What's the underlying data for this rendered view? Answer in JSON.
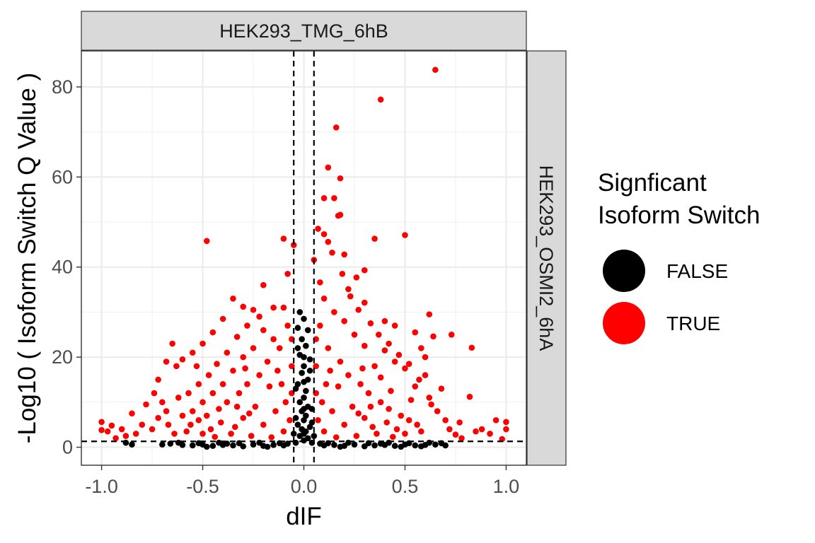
{
  "chart_data": {
    "type": "scatter",
    "title": "",
    "facet_top": "HEK293_TMG_6hB",
    "facet_right": "HEK293_OSMI2_6hA",
    "xlabel": "dIF",
    "ylabel": "-Log10 ( Isoform Switch Q Value )",
    "xlim": [
      -1.1,
      1.1
    ],
    "ylim": [
      -4,
      88
    ],
    "x_ticks": [
      -1.0,
      -0.5,
      0.0,
      0.5,
      1.0
    ],
    "x_tick_labels": [
      "-1.0",
      "-0.5",
      "0.0",
      "0.5",
      "1.0"
    ],
    "y_ticks": [
      0,
      20,
      40,
      60,
      80
    ],
    "y_tick_labels": [
      "0",
      "20",
      "40",
      "60",
      "80"
    ],
    "grid": true,
    "threshold_lines": {
      "vertical": [
        -0.05,
        0.05
      ],
      "horizontal": 1.3
    },
    "legend": {
      "title_line1": "Signficant",
      "title_line2": "Isoform Switch",
      "position": "right",
      "entries": [
        {
          "label": "FALSE",
          "color": "#000000"
        },
        {
          "label": "TRUE",
          "color": "#ff0000"
        }
      ]
    },
    "series": [
      {
        "name": "TRUE",
        "color": "#ff0000",
        "points": [
          [
            0.65,
            83.8
          ],
          [
            0.38,
            77.2
          ],
          [
            0.16,
            71.0
          ],
          [
            0.12,
            62.1
          ],
          [
            0.18,
            59.7
          ],
          [
            0.1,
            55.3
          ],
          [
            0.15,
            55.3
          ],
          [
            0.17,
            51.4
          ],
          [
            0.18,
            51.6
          ],
          [
            0.35,
            46.3
          ],
          [
            0.5,
            47.1
          ],
          [
            -0.48,
            45.8
          ],
          [
            -0.05,
            44.9
          ],
          [
            -0.1,
            46.3
          ],
          [
            0.07,
            48.5
          ],
          [
            0.1,
            47.3
          ],
          [
            0.12,
            45.6
          ],
          [
            0.14,
            43.2
          ],
          [
            0.2,
            42.8
          ],
          [
            0.05,
            41.6
          ],
          [
            0.3,
            39.3
          ],
          [
            0.26,
            37.7
          ],
          [
            -0.08,
            38.5
          ],
          [
            -0.2,
            36.0
          ],
          [
            0.22,
            35.1
          ],
          [
            0.08,
            36.6
          ],
          [
            0.62,
            29.5
          ],
          [
            0.73,
            25.0
          ],
          [
            0.83,
            22.1
          ],
          [
            0.64,
            24.6
          ],
          [
            -0.35,
            33.0
          ],
          [
            -0.3,
            31.2
          ],
          [
            -0.25,
            30.5
          ],
          [
            -0.15,
            31.0
          ],
          [
            0.3,
            32.1
          ],
          [
            0.4,
            28.0
          ],
          [
            0.45,
            27.0
          ],
          [
            0.55,
            25.5
          ],
          [
            0.58,
            22.0
          ],
          [
            0.6,
            20.0
          ],
          [
            -0.4,
            28.5
          ],
          [
            -0.45,
            25.5
          ],
          [
            -0.5,
            23.0
          ],
          [
            -0.55,
            21.0
          ],
          [
            -0.6,
            19.5
          ],
          [
            -0.65,
            23.0
          ],
          [
            -0.68,
            19.0
          ],
          [
            -0.63,
            18.0
          ],
          [
            -0.72,
            15.0
          ],
          [
            -0.7,
            10.0
          ],
          [
            -0.78,
            9.5
          ],
          [
            -0.8,
            5.0
          ],
          [
            -0.85,
            7.5
          ],
          [
            -0.9,
            4.0
          ],
          [
            -0.95,
            4.8
          ],
          [
            -0.97,
            3.5
          ],
          [
            -1.0,
            5.6
          ],
          [
            -1.0,
            3.8
          ],
          [
            -0.93,
            2.0
          ],
          [
            -0.88,
            2.5
          ],
          [
            -0.83,
            3.0
          ],
          [
            -0.75,
            4.0
          ],
          [
            -0.72,
            6.5
          ],
          [
            -0.67,
            5.0
          ],
          [
            -0.62,
            11.0
          ],
          [
            0.62,
            11.0
          ],
          [
            0.66,
            8.0
          ],
          [
            0.7,
            6.0
          ],
          [
            0.72,
            4.0
          ],
          [
            0.75,
            2.8
          ],
          [
            0.77,
            5.5
          ],
          [
            0.82,
            11.2
          ],
          [
            0.85,
            3.5
          ],
          [
            0.88,
            4.0
          ],
          [
            0.92,
            3.0
          ],
          [
            0.95,
            6.0
          ],
          [
            1.0,
            5.6
          ],
          [
            1.0,
            4.0
          ],
          [
            0.98,
            1.8
          ],
          [
            0.78,
            2.0
          ],
          [
            0.68,
            13.0
          ],
          [
            0.6,
            16.0
          ],
          [
            0.55,
            13.5
          ],
          [
            0.5,
            17.5
          ],
          [
            0.45,
            19.0
          ],
          [
            0.4,
            21.5
          ],
          [
            0.35,
            18.0
          ],
          [
            0.3,
            22.5
          ],
          [
            0.25,
            25.0
          ],
          [
            0.2,
            28.0
          ],
          [
            0.15,
            30.0
          ],
          [
            0.1,
            33.0
          ],
          [
            0.08,
            27.0
          ],
          [
            0.06,
            24.0
          ],
          [
            0.12,
            22.0
          ],
          [
            0.18,
            19.0
          ],
          [
            0.22,
            16.0
          ],
          [
            0.28,
            14.0
          ],
          [
            0.32,
            12.0
          ],
          [
            0.38,
            10.0
          ],
          [
            0.42,
            8.5
          ],
          [
            0.48,
            7.0
          ],
          [
            0.52,
            6.0
          ],
          [
            0.56,
            5.0
          ],
          [
            0.58,
            3.5
          ],
          [
            0.46,
            4.0
          ],
          [
            0.36,
            3.0
          ],
          [
            0.26,
            2.5
          ],
          [
            0.16,
            2.2
          ],
          [
            0.1,
            3.5
          ],
          [
            0.07,
            6.0
          ],
          [
            0.09,
            10.0
          ],
          [
            0.11,
            14.0
          ],
          [
            0.13,
            17.0
          ],
          [
            0.14,
            8.0
          ],
          [
            0.2,
            5.0
          ],
          [
            0.24,
            9.0
          ],
          [
            0.3,
            6.5
          ],
          [
            0.34,
            4.5
          ],
          [
            0.44,
            2.3
          ],
          [
            -0.07,
            6.0
          ],
          [
            -0.09,
            10.0
          ],
          [
            -0.11,
            14.0
          ],
          [
            -0.13,
            17.0
          ],
          [
            -0.14,
            8.0
          ],
          [
            -0.2,
            5.0
          ],
          [
            -0.24,
            9.0
          ],
          [
            -0.3,
            6.5
          ],
          [
            -0.34,
            4.5
          ],
          [
            -0.44,
            2.3
          ],
          [
            -0.06,
            24.0
          ],
          [
            -0.08,
            27.0
          ],
          [
            -0.1,
            31.0
          ],
          [
            -0.12,
            22.0
          ],
          [
            -0.18,
            19.0
          ],
          [
            -0.22,
            16.0
          ],
          [
            -0.28,
            14.0
          ],
          [
            -0.32,
            12.0
          ],
          [
            -0.38,
            10.0
          ],
          [
            -0.42,
            8.5
          ],
          [
            -0.48,
            7.0
          ],
          [
            -0.52,
            6.0
          ],
          [
            -0.56,
            5.0
          ],
          [
            -0.58,
            3.5
          ],
          [
            -0.46,
            4.0
          ],
          [
            -0.36,
            3.0
          ],
          [
            -0.26,
            2.5
          ],
          [
            -0.16,
            2.2
          ],
          [
            -0.1,
            3.5
          ],
          [
            -0.2,
            26.0
          ],
          [
            -0.25,
            22.0
          ],
          [
            -0.3,
            20.0
          ],
          [
            -0.35,
            17.0
          ],
          [
            -0.4,
            14.0
          ],
          [
            -0.45,
            12.0
          ],
          [
            -0.5,
            10.0
          ],
          [
            -0.55,
            8.0
          ],
          [
            -0.6,
            7.0
          ],
          [
            -0.64,
            3.0
          ],
          [
            -0.15,
            24.0
          ],
          [
            -0.22,
            29.0
          ],
          [
            -0.28,
            27.0
          ],
          [
            -0.33,
            24.5
          ],
          [
            -0.38,
            21.0
          ],
          [
            -0.43,
            18.5
          ],
          [
            -0.47,
            16.0
          ],
          [
            -0.52,
            14.0
          ],
          [
            -0.57,
            12.0
          ],
          [
            -0.53,
            18.0
          ],
          [
            0.19,
            38.5
          ],
          [
            0.23,
            33.5
          ],
          [
            0.27,
            30.5
          ],
          [
            0.33,
            27.5
          ],
          [
            0.37,
            25.0
          ],
          [
            0.42,
            23.0
          ],
          [
            0.47,
            20.5
          ],
          [
            0.52,
            18.5
          ],
          [
            0.57,
            15.0
          ],
          [
            0.63,
            9.5
          ],
          [
            0.53,
            10.5
          ],
          [
            0.43,
            12.5
          ],
          [
            0.38,
            15.5
          ],
          [
            0.29,
            17.5
          ],
          [
            0.17,
            13.5
          ],
          [
            0.06,
            18.0
          ],
          [
            0.06,
            12.0
          ],
          [
            -0.06,
            12.0
          ],
          [
            -0.06,
            18.0
          ],
          [
            -0.17,
            13.5
          ],
          [
            -0.29,
            17.5
          ],
          [
            0.27,
            7.5
          ],
          [
            0.33,
            9.0
          ],
          [
            0.41,
            5.5
          ],
          [
            0.5,
            3.0
          ],
          [
            -0.27,
            7.5
          ],
          [
            -0.33,
            9.0
          ],
          [
            -0.41,
            5.5
          ],
          [
            -0.5,
            3.0
          ],
          [
            -0.68,
            8.0
          ],
          [
            -0.74,
            12.0
          ]
        ]
      },
      {
        "name": "FALSE",
        "color": "#000000",
        "points": [
          [
            -0.02,
            30.0
          ],
          [
            0.0,
            28.5
          ],
          [
            -0.03,
            26.5
          ],
          [
            0.02,
            26.0
          ],
          [
            -0.01,
            24.0
          ],
          [
            0.01,
            22.5
          ],
          [
            -0.02,
            20.5
          ],
          [
            0.03,
            19.5
          ],
          [
            0.0,
            18.0
          ],
          [
            -0.01,
            16.5
          ],
          [
            0.02,
            15.0
          ],
          [
            -0.03,
            14.0
          ],
          [
            0.01,
            12.5
          ],
          [
            0.0,
            11.0
          ],
          [
            -0.02,
            10.0
          ],
          [
            0.02,
            9.0
          ],
          [
            -0.01,
            8.0
          ],
          [
            0.01,
            7.0
          ],
          [
            0.0,
            6.0
          ],
          [
            -0.03,
            5.0
          ],
          [
            0.03,
            4.5
          ],
          [
            -0.01,
            4.0
          ],
          [
            0.01,
            3.5
          ],
          [
            0.0,
            3.0
          ],
          [
            -0.02,
            2.5
          ],
          [
            0.02,
            2.0
          ],
          [
            0.0,
            1.5
          ],
          [
            -0.04,
            1.0
          ],
          [
            0.04,
            1.0
          ],
          [
            -0.03,
            22.0
          ],
          [
            0.03,
            17.0
          ],
          [
            -0.04,
            13.0
          ],
          [
            0.04,
            8.5
          ],
          [
            -0.04,
            6.5
          ],
          [
            0.04,
            5.5
          ],
          [
            -0.05,
            3.0
          ],
          [
            0.05,
            2.5
          ],
          [
            0.0,
            20.0
          ],
          [
            0.0,
            14.5
          ],
          [
            0.0,
            8.5
          ],
          [
            -0.88,
            1.0
          ],
          [
            -0.85,
            0.6
          ],
          [
            -0.66,
            0.8
          ],
          [
            -0.6,
            0.5
          ],
          [
            -0.55,
            0.4
          ],
          [
            -0.5,
            0.6
          ],
          [
            -0.45,
            0.3
          ],
          [
            -0.4,
            0.5
          ],
          [
            -0.35,
            0.4
          ],
          [
            -0.3,
            0.2
          ],
          [
            -0.25,
            0.6
          ],
          [
            -0.2,
            0.3
          ],
          [
            -0.15,
            0.5
          ],
          [
            -0.1,
            0.4
          ],
          [
            -0.08,
            0.8
          ],
          [
            0.08,
            0.8
          ],
          [
            0.1,
            0.4
          ],
          [
            0.15,
            0.5
          ],
          [
            0.2,
            0.3
          ],
          [
            0.25,
            0.6
          ],
          [
            0.3,
            0.2
          ],
          [
            0.35,
            0.4
          ],
          [
            0.4,
            0.5
          ],
          [
            0.45,
            0.3
          ],
          [
            0.5,
            0.6
          ],
          [
            0.55,
            0.4
          ],
          [
            0.6,
            0.5
          ],
          [
            0.65,
            0.6
          ],
          [
            0.7,
            0.4
          ],
          [
            0.68,
            0.9
          ],
          [
            -0.7,
            0.6
          ],
          [
            -0.62,
            1.0
          ],
          [
            -0.52,
            0.9
          ],
          [
            -0.42,
            1.0
          ],
          [
            -0.32,
            0.9
          ],
          [
            -0.22,
            1.0
          ],
          [
            -0.12,
            0.9
          ],
          [
            0.12,
            0.9
          ],
          [
            0.22,
            1.0
          ],
          [
            0.32,
            0.9
          ],
          [
            0.42,
            1.0
          ],
          [
            0.52,
            0.9
          ],
          [
            0.62,
            1.0
          ],
          [
            -0.48,
            0.1
          ],
          [
            0.48,
            0.1
          ],
          [
            -0.18,
            0.1
          ],
          [
            0.18,
            0.1
          ],
          [
            -0.38,
            0.8
          ],
          [
            0.38,
            0.8
          ],
          [
            0.58,
            0.2
          ]
        ]
      }
    ]
  }
}
